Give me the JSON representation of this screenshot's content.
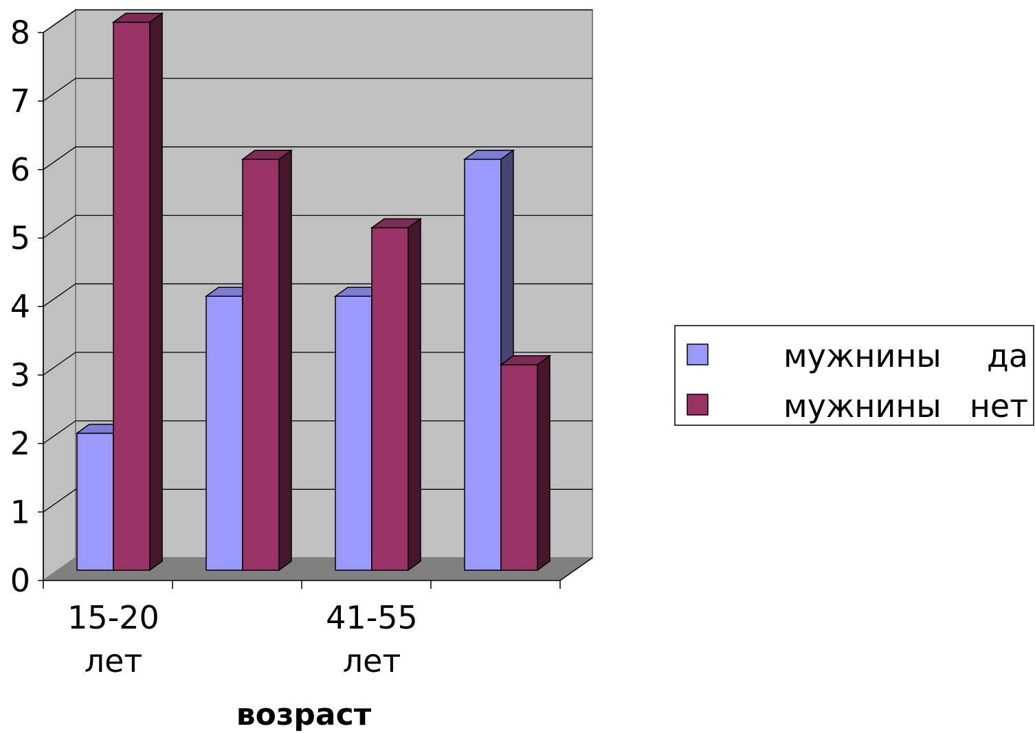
{
  "chart_data": {
    "type": "bar",
    "categories": [
      "15-20 лет",
      "",
      "41-55 лет",
      ""
    ],
    "category_label_lines": [
      [
        "15-20",
        "лет"
      ],
      [],
      [
        "41-55",
        "лет"
      ],
      []
    ],
    "series": [
      {
        "name": "мужнины да",
        "legend_words": [
          "мужнины",
          "да"
        ],
        "values": [
          2,
          4,
          4,
          6
        ],
        "color": "#9999FF"
      },
      {
        "name": "мужнины нет",
        "legend_words": [
          "мужнины",
          "нет"
        ],
        "values": [
          8,
          6,
          5,
          3
        ],
        "color": "#993366"
      }
    ],
    "xlabel": "возраст",
    "ylabel": "",
    "ylim": [
      0,
      8
    ],
    "yticks": [
      0,
      1,
      2,
      3,
      4,
      5,
      6,
      7,
      8
    ],
    "grid": true,
    "legend_position": "right",
    "wall_color": "#C0C0C0",
    "floor_color": "#808080"
  }
}
